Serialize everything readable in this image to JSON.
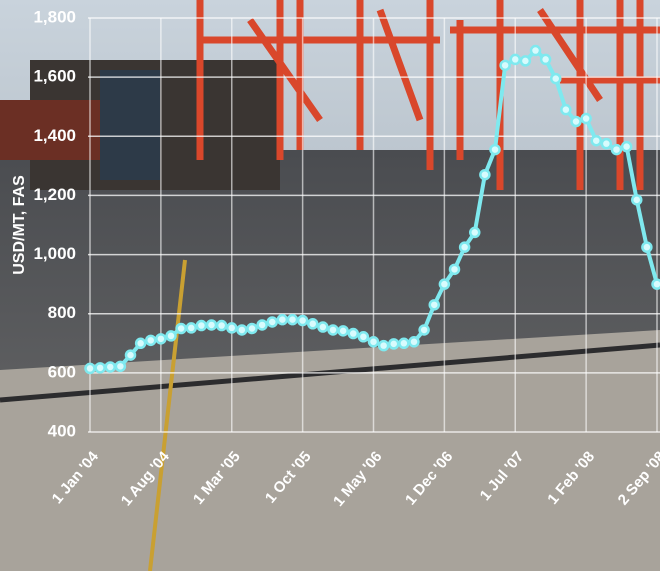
{
  "chart_data": {
    "type": "line",
    "y_label": "USD/MT, FAS",
    "categories": [
      "1 Jan '04",
      null,
      null,
      null,
      null,
      null,
      null,
      "1 Aug '04",
      null,
      null,
      null,
      null,
      null,
      null,
      "1 Mar '05",
      null,
      null,
      null,
      null,
      null,
      null,
      "1 Oct '05",
      null,
      null,
      null,
      null,
      null,
      null,
      "1 May '06",
      null,
      null,
      null,
      null,
      null,
      null,
      "1 Dec '06",
      null,
      null,
      null,
      null,
      null,
      null,
      "1 Jul '07",
      null,
      null,
      null,
      null,
      null,
      null,
      "1 Feb '08",
      null,
      null,
      null,
      null,
      null,
      null,
      "2 Sep '08"
    ],
    "series": [
      {
        "color": "#7fe9ef",
        "values": [
          615,
          617,
          620,
          622,
          660,
          700,
          710,
          715,
          725,
          750,
          752,
          760,
          762,
          760,
          752,
          745,
          750,
          762,
          772,
          780,
          780,
          777,
          766,
          755,
          745,
          742,
          733,
          722,
          705,
          692,
          698,
          700,
          705,
          745,
          830,
          900,
          950,
          1025,
          1075,
          1270,
          1355,
          1640,
          1660,
          1655,
          1690,
          1660,
          1595,
          1490,
          1450,
          1460,
          1385,
          1375,
          1355,
          1365,
          1185,
          1025,
          900
        ]
      }
    ],
    "ylim": [
      400,
      1800
    ],
    "yticks": [
      400,
      600,
      800,
      {
        "value": 1000,
        "label": "1,000"
      },
      {
        "value": 1200,
        "label": "1,200"
      },
      {
        "value": 1400,
        "label": "1,400"
      },
      {
        "value": 1600,
        "label": "1,600"
      },
      {
        "value": 1800,
        "label": "1,800"
      }
    ],
    "grid": true
  }
}
